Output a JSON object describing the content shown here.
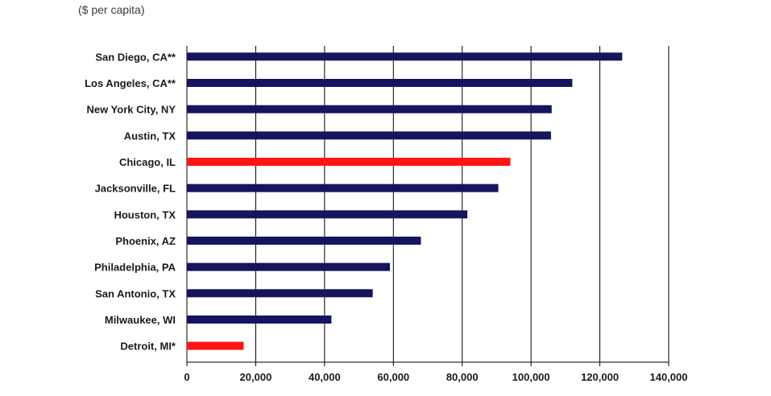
{
  "chart_data": {
    "type": "bar",
    "orientation": "horizontal",
    "subtitle": "($ per capita)",
    "categories": [
      "San Diego, CA**",
      "Los Angeles, CA**",
      "New York City, NY",
      "Austin, TX",
      "Chicago, IL",
      "Jacksonville, FL",
      "Houston, TX",
      "Phoenix, AZ",
      "Philadelphia, PA",
      "San Antonio, TX",
      "Milwaukee, WI",
      "Detroit, MI*"
    ],
    "values": [
      126500,
      112000,
      106000,
      105800,
      94000,
      90500,
      81500,
      68000,
      59000,
      54000,
      42000,
      16500
    ],
    "highlighted": [
      "Chicago, IL",
      "Detroit, MI*"
    ],
    "colors": {
      "default": "#14145f",
      "highlight": "#ff1414"
    },
    "xlim": [
      0,
      140000
    ],
    "xticks": [
      0,
      20000,
      40000,
      60000,
      80000,
      100000,
      120000,
      140000
    ],
    "xtick_labels": [
      "0",
      "20,000",
      "40,000",
      "60,000",
      "80,000",
      "100,000",
      "120,000",
      "140,000"
    ],
    "grid": "vertical"
  }
}
